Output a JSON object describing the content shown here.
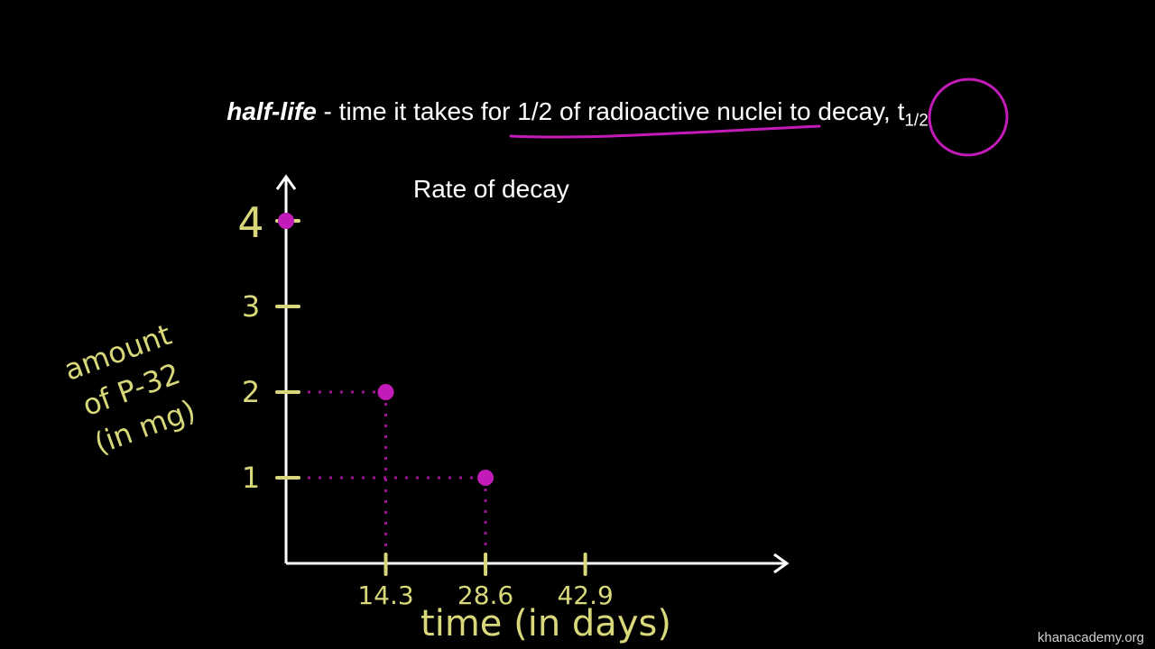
{
  "headline": {
    "term": "half-life",
    "definition": " - time it takes for 1/2 of radioactive nuclei to decay, t",
    "subscript": "1/2"
  },
  "watermark": "khanacademy.org",
  "colors": {
    "background": "#000000",
    "annotation": "#c21bb8",
    "handwriting": "#d8d87a",
    "axes": "#ffffff"
  },
  "chart_data": {
    "type": "scatter",
    "title": "Rate of decay",
    "xlabel": "time (in days)",
    "ylabel_lines": [
      "amount",
      "of P-32",
      "(in mg)"
    ],
    "x_ticks": [
      {
        "value": 14.3,
        "label": "14.3"
      },
      {
        "value": 28.6,
        "label": "28.6"
      },
      {
        "value": 42.9,
        "label": "42.9"
      }
    ],
    "y_ticks": [
      {
        "value": 1,
        "label": "1"
      },
      {
        "value": 2,
        "label": "2"
      },
      {
        "value": 3,
        "label": "3"
      },
      {
        "value": 4,
        "label": "4"
      }
    ],
    "points": [
      {
        "x": 0,
        "y": 4
      },
      {
        "x": 14.3,
        "y": 2
      },
      {
        "x": 28.6,
        "y": 1
      }
    ],
    "xlim": [
      0,
      57
    ],
    "ylim": [
      0,
      4.5
    ],
    "grid": false
  }
}
